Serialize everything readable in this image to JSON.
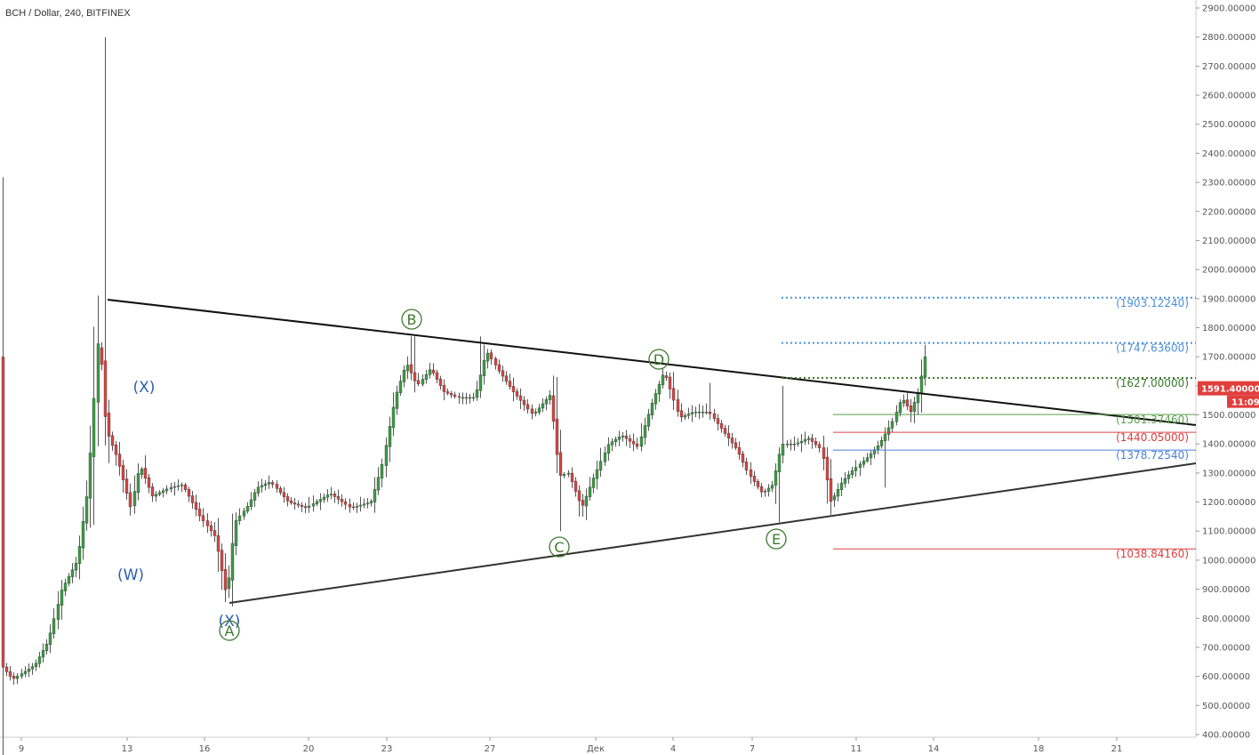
{
  "header": {
    "symbol_line": "BCH / Dollar, 240, BITFINEX"
  },
  "chart_data": {
    "type": "candlestick",
    "title": "BCH / Dollar, 240, BITFINEX",
    "y_axis": {
      "ylim": [
        400,
        2900
      ],
      "tick_labels": [
        "2900.00000",
        "2800.00000",
        "2700.00000",
        "2600.00000",
        "2500.00000",
        "2400.00000",
        "2300.00000",
        "2200.00000",
        "2100.00000",
        "2000.00000",
        "1900.00000",
        "1800.00000",
        "1700.00000",
        "1600.00000",
        "1500.00000",
        "1400.00000",
        "1300.00000",
        "1200.00000",
        "1100.00000",
        "1000.00000",
        "900.00000",
        "800.00000",
        "700.00000",
        "600.00000",
        "500.00000",
        "400.00000"
      ]
    },
    "x_axis": {
      "tick_labels": [
        "9",
        "13",
        "16",
        "20",
        "23",
        "27",
        "Дек",
        "4",
        "7",
        "11",
        "14",
        "18",
        "21"
      ]
    },
    "price_badge": {
      "price": "1591.40000",
      "time": "11:09",
      "color": "#e0403d"
    },
    "fib_levels": [
      {
        "label": "(1903.12240)",
        "value": 1903.1224,
        "color": "#4a90d9",
        "style": "dotted"
      },
      {
        "label": "(1747.63600)",
        "value": 1747.636,
        "color": "#4a90d9",
        "style": "dotted"
      },
      {
        "label": "(1627.00000)",
        "value": 1627.0,
        "color": "#3d7a2e",
        "style": "dotted"
      },
      {
        "label": "(1501.37460)",
        "value": 1501.3746,
        "color": "#5a9e4a",
        "style": "solid"
      },
      {
        "label": "(1440.05000)",
        "value": 1440.05,
        "color": "#d94040",
        "style": "solid"
      },
      {
        "label": "(1378.72540)",
        "value": 1378.7254,
        "color": "#4a7fd9",
        "style": "solid"
      },
      {
        "label": "(1038.84160)",
        "value": 1038.8416,
        "color": "#d94040",
        "style": "solid"
      }
    ],
    "wave_labels": [
      {
        "text": "(X)",
        "color": "#2c5eb0",
        "circled": false
      },
      {
        "text": "(W)",
        "color": "#2c5eb0",
        "circled": false
      },
      {
        "text": "(X)",
        "color": "#2c5eb0",
        "circled": false
      },
      {
        "text": "A",
        "color": "#3d7a2e",
        "circled": true
      },
      {
        "text": "B",
        "color": "#3d7a2e",
        "circled": true
      },
      {
        "text": "C",
        "color": "#3d7a2e",
        "circled": true
      },
      {
        "text": "D",
        "color": "#3d7a2e",
        "circled": true
      },
      {
        "text": "E",
        "color": "#3d7a2e",
        "circled": true
      }
    ],
    "colors": {
      "up": "#3a9b43",
      "down": "#d84343",
      "trendline": "#111111"
    }
  }
}
